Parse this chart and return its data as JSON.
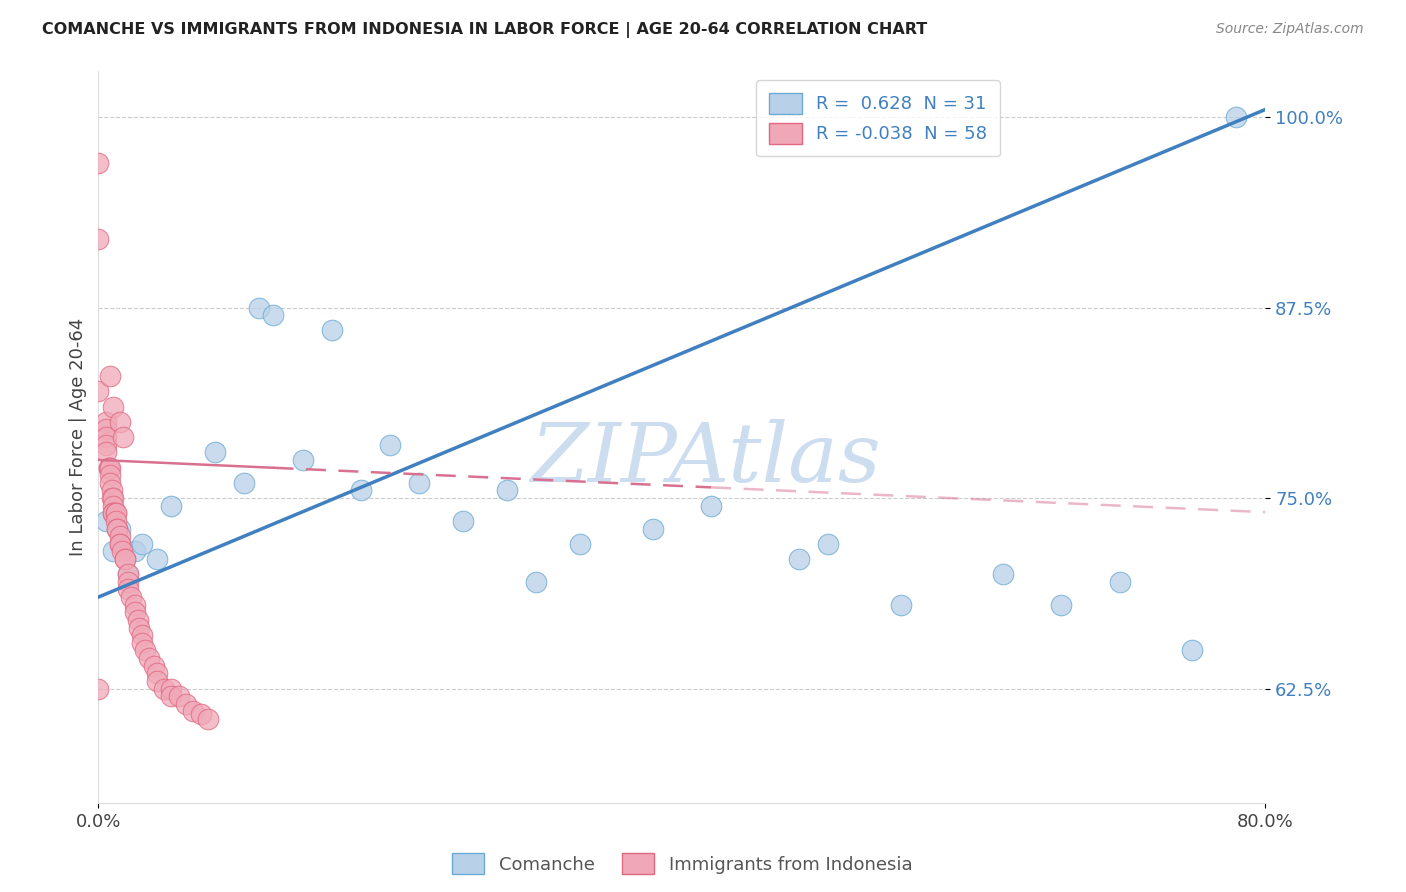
{
  "title": "COMANCHE VS IMMIGRANTS FROM INDONESIA IN LABOR FORCE | AGE 20-64 CORRELATION CHART",
  "source": "Source: ZipAtlas.com",
  "ylabel": "In Labor Force | Age 20-64",
  "xlim": [
    0.0,
    0.8
  ],
  "ylim": [
    0.55,
    1.03
  ],
  "yticks": [
    0.625,
    0.75,
    0.875,
    1.0
  ],
  "ytick_labels": [
    "62.5%",
    "75.0%",
    "87.5%",
    "100.0%"
  ],
  "legend_R1": " 0.628",
  "legend_N1": "31",
  "legend_R2": "-0.038",
  "legend_N2": "58",
  "comanche_fill": "#b8d0e8",
  "comanche_edge": "#6aaad4",
  "indonesia_fill": "#f0a8b8",
  "indonesia_edge": "#e06880",
  "trend_blue": "#4080c0",
  "trend_pink": "#d87090",
  "watermark": "ZIPAtlas",
  "watermark_color": "#ccddf0",
  "background": "#ffffff",
  "blue_line_x0": 0.0,
  "blue_line_y0": 0.685,
  "blue_line_x1": 0.8,
  "blue_line_y1": 1.005,
  "pink_line_x0": 0.0,
  "pink_line_y0": 0.775,
  "pink_line_x1": 0.42,
  "pink_line_y1": 0.757,
  "comanche_x": [
    0.005,
    0.01,
    0.015,
    0.02,
    0.025,
    0.03,
    0.04,
    0.05,
    0.08,
    0.1,
    0.11,
    0.12,
    0.14,
    0.16,
    0.18,
    0.2,
    0.22,
    0.25,
    0.28,
    0.3,
    0.33,
    0.38,
    0.42,
    0.48,
    0.5,
    0.55,
    0.62,
    0.66,
    0.7,
    0.75,
    0.78
  ],
  "comanche_y": [
    0.735,
    0.715,
    0.73,
    0.7,
    0.715,
    0.72,
    0.71,
    0.745,
    0.78,
    0.76,
    0.875,
    0.87,
    0.775,
    0.86,
    0.755,
    0.785,
    0.76,
    0.735,
    0.755,
    0.695,
    0.72,
    0.73,
    0.745,
    0.71,
    0.72,
    0.68,
    0.7,
    0.68,
    0.695,
    0.65,
    1.0
  ],
  "indonesia_x": [
    0.0,
    0.0,
    0.0,
    0.005,
    0.005,
    0.005,
    0.005,
    0.005,
    0.007,
    0.007,
    0.008,
    0.008,
    0.008,
    0.009,
    0.009,
    0.01,
    0.01,
    0.01,
    0.01,
    0.012,
    0.012,
    0.012,
    0.013,
    0.013,
    0.015,
    0.015,
    0.015,
    0.016,
    0.018,
    0.018,
    0.02,
    0.02,
    0.02,
    0.022,
    0.025,
    0.025,
    0.027,
    0.028,
    0.03,
    0.03,
    0.032,
    0.035,
    0.038,
    0.04,
    0.04,
    0.045,
    0.05,
    0.05,
    0.055,
    0.06,
    0.065,
    0.07,
    0.075,
    0.008,
    0.01,
    0.015,
    0.017,
    0.0
  ],
  "indonesia_y": [
    0.97,
    0.92,
    0.82,
    0.8,
    0.795,
    0.79,
    0.785,
    0.78,
    0.77,
    0.77,
    0.77,
    0.765,
    0.76,
    0.755,
    0.75,
    0.75,
    0.745,
    0.74,
    0.74,
    0.74,
    0.74,
    0.735,
    0.73,
    0.73,
    0.725,
    0.72,
    0.72,
    0.715,
    0.71,
    0.71,
    0.7,
    0.695,
    0.69,
    0.685,
    0.68,
    0.675,
    0.67,
    0.665,
    0.66,
    0.655,
    0.65,
    0.645,
    0.64,
    0.635,
    0.63,
    0.625,
    0.625,
    0.62,
    0.62,
    0.615,
    0.61,
    0.608,
    0.605,
    0.83,
    0.81,
    0.8,
    0.79,
    0.625
  ]
}
